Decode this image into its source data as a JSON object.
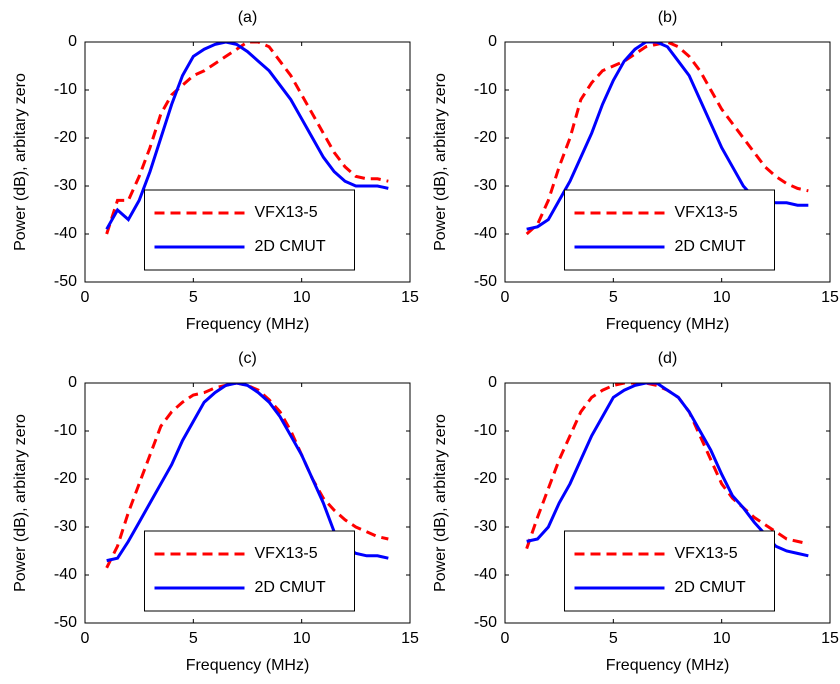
{
  "chart_data": [
    {
      "type": "line",
      "title": "(a)",
      "x_label": "Frequency (MHz)",
      "y_label": "Power (dB), arbitary zero",
      "xlim": [
        0,
        15
      ],
      "ylim": [
        -50,
        0
      ],
      "xticks": [
        0,
        5,
        10,
        15
      ],
      "yticks": [
        -50,
        -40,
        -30,
        -20,
        -10,
        0
      ],
      "legend": "lower center",
      "x": [
        1,
        1.5,
        2,
        2.5,
        3,
        3.5,
        4,
        4.5,
        5,
        5.5,
        6,
        6.5,
        7,
        7.5,
        8,
        8.5,
        9,
        9.5,
        10,
        10.5,
        11,
        11.5,
        12,
        12.5,
        13,
        13.5,
        14
      ],
      "series": [
        {
          "name": "VFX13-5",
          "color": "#ff0000",
          "line_style": "dashed",
          "values": [
            -40,
            -33,
            -33,
            -28,
            -22,
            -15,
            -11,
            -9,
            -7,
            -6,
            -4.5,
            -3,
            -1.5,
            0,
            0,
            -1,
            -4,
            -7,
            -11,
            -15,
            -19,
            -23,
            -26,
            -28,
            -28.5,
            -28.5,
            -29
          ]
        },
        {
          "name": "2D CMUT",
          "color": "#0000ff",
          "line_style": "solid",
          "values": [
            -39,
            -35,
            -37,
            -33,
            -27,
            -20,
            -13,
            -7,
            -3,
            -1.5,
            -0.5,
            0,
            -0.5,
            -2,
            -4,
            -6,
            -9,
            -12,
            -16,
            -20,
            -24,
            -27,
            -29,
            -30,
            -30,
            -30,
            -30.5
          ]
        }
      ]
    },
    {
      "type": "line",
      "title": "(b)",
      "x_label": "Frequency (MHz)",
      "y_label": "Power (dB), arbitary zero",
      "xlim": [
        0,
        15
      ],
      "ylim": [
        -50,
        0
      ],
      "xticks": [
        0,
        5,
        10,
        15
      ],
      "yticks": [
        -50,
        -40,
        -30,
        -20,
        -10,
        0
      ],
      "legend": "lower center",
      "x": [
        1,
        1.5,
        2,
        2.5,
        3,
        3.5,
        4,
        4.5,
        5,
        5.5,
        6,
        6.5,
        7,
        7.5,
        8,
        8.5,
        9,
        9.5,
        10,
        10.5,
        11,
        11.5,
        12,
        12.5,
        13,
        13.5,
        14
      ],
      "series": [
        {
          "name": "VFX13-5",
          "color": "#ff0000",
          "line_style": "dashed",
          "values": [
            -40,
            -38,
            -33,
            -26,
            -20,
            -12,
            -8.5,
            -6,
            -5,
            -4,
            -2.5,
            -1,
            -0.5,
            0,
            -1,
            -3,
            -6,
            -10,
            -14,
            -17,
            -20,
            -23,
            -26,
            -28,
            -29.5,
            -30.5,
            -31
          ]
        },
        {
          "name": "2D CMUT",
          "color": "#0000ff",
          "line_style": "solid",
          "values": [
            -39,
            -38.5,
            -37,
            -33,
            -29,
            -24,
            -19,
            -13,
            -8,
            -4,
            -1.5,
            0,
            0,
            -1,
            -4,
            -7,
            -12,
            -17,
            -22,
            -26,
            -30,
            -32.5,
            -33,
            -33.5,
            -33.5,
            -34,
            -34
          ]
        }
      ]
    },
    {
      "type": "line",
      "title": "(c)",
      "x_label": "Frequency (MHz)",
      "y_label": "Power (dB), arbitary zero",
      "xlim": [
        0,
        15
      ],
      "ylim": [
        -50,
        0
      ],
      "xticks": [
        0,
        5,
        10,
        15
      ],
      "yticks": [
        -50,
        -40,
        -30,
        -20,
        -10,
        0
      ],
      "legend": "lower center",
      "x": [
        1,
        1.5,
        2,
        2.5,
        3,
        3.5,
        4,
        4.5,
        5,
        5.5,
        6,
        6.5,
        7,
        7.5,
        8,
        8.5,
        9,
        9.5,
        10,
        10.5,
        11,
        11.5,
        12,
        12.5,
        13,
        13.5,
        14
      ],
      "series": [
        {
          "name": "VFX13-5",
          "color": "#ff0000",
          "line_style": "dashed",
          "values": [
            -38.5,
            -34,
            -27,
            -21,
            -15,
            -9,
            -6,
            -4,
            -2.5,
            -2,
            -1,
            -0.5,
            0,
            -0.5,
            -1.5,
            -3.5,
            -6,
            -10,
            -15,
            -20,
            -24,
            -26.5,
            -28.5,
            -30,
            -31,
            -32,
            -32.5
          ]
        },
        {
          "name": "2D CMUT",
          "color": "#0000ff",
          "line_style": "solid",
          "values": [
            -37,
            -36.5,
            -33,
            -29,
            -25,
            -21,
            -17,
            -12,
            -8,
            -4,
            -2,
            -0.5,
            0,
            -0.5,
            -2,
            -4,
            -7,
            -11,
            -15,
            -20,
            -25,
            -31,
            -34,
            -35.5,
            -36,
            -36,
            -36.5
          ]
        }
      ]
    },
    {
      "type": "line",
      "title": "(d)",
      "x_label": "Frequency (MHz)",
      "y_label": "Power (dB), arbitary zero",
      "xlim": [
        0,
        15
      ],
      "ylim": [
        -50,
        0
      ],
      "xticks": [
        0,
        5,
        10,
        15
      ],
      "yticks": [
        -50,
        -40,
        -30,
        -20,
        -10,
        0
      ],
      "legend": "lower center",
      "x": [
        1,
        1.5,
        2,
        2.5,
        3,
        3.5,
        4,
        4.5,
        5,
        5.5,
        6,
        6.5,
        7,
        7.5,
        8,
        8.5,
        9,
        9.5,
        10,
        10.5,
        11,
        11.5,
        12,
        12.5,
        13,
        13.5,
        14
      ],
      "series": [
        {
          "name": "VFX13-5",
          "color": "#ff0000",
          "line_style": "dashed",
          "values": [
            -34.5,
            -28,
            -22,
            -16,
            -11,
            -6,
            -3,
            -1.5,
            -0.5,
            0,
            0,
            0,
            -0.5,
            -1.5,
            -3,
            -6,
            -11,
            -16,
            -21,
            -24,
            -26,
            -28,
            -29.5,
            -31,
            -32.5,
            -33,
            -33.5
          ]
        },
        {
          "name": "2D CMUT",
          "color": "#0000ff",
          "line_style": "solid",
          "values": [
            -33,
            -32.5,
            -30,
            -25,
            -21,
            -16,
            -11,
            -7,
            -3,
            -1.5,
            -0.5,
            0,
            0,
            -1.5,
            -3,
            -6,
            -10,
            -14,
            -19,
            -23.5,
            -26,
            -29,
            -31.5,
            -34,
            -35,
            -35.5,
            -36
          ]
        }
      ]
    }
  ]
}
